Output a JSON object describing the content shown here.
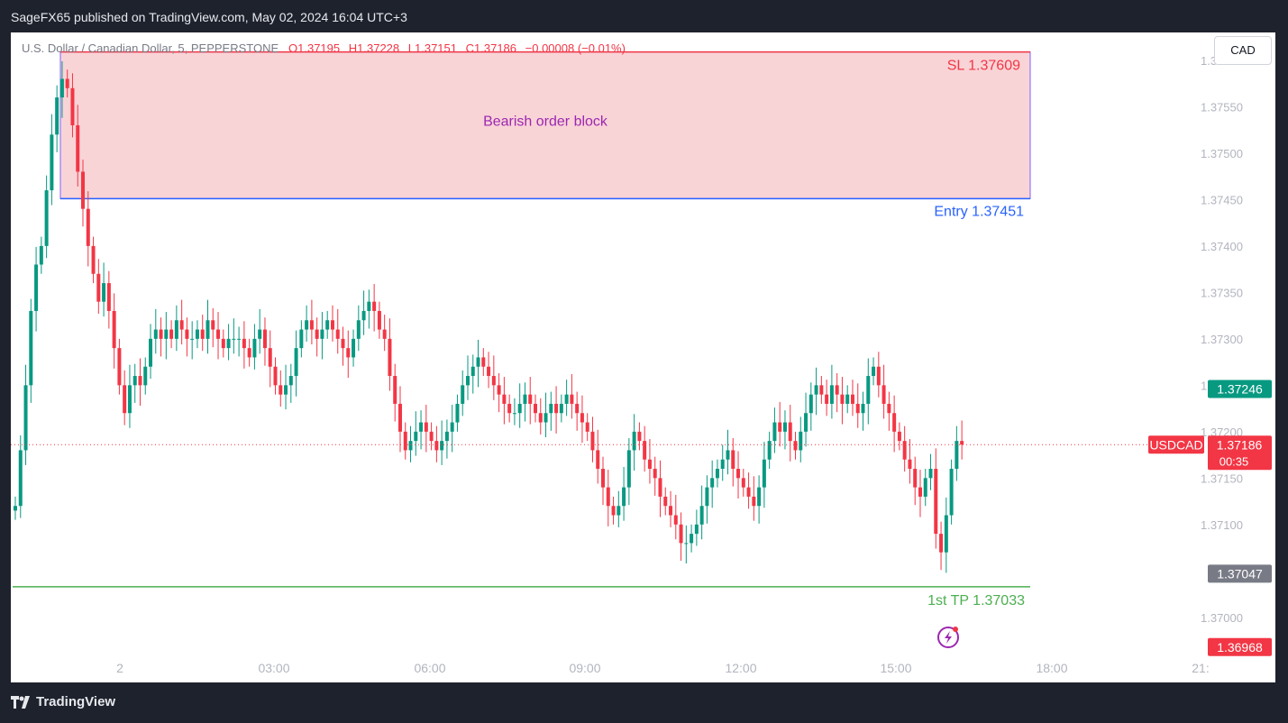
{
  "header": {
    "publisher": "SageFX65 published on TradingView.com, May 02, 2024 16:04 UTC+3"
  },
  "legend": {
    "symbol": "U.S. Dollar / Canadian Dollar, 5, PEPPERSTONE",
    "o_label": "O",
    "o_value": "1.37195",
    "h_label": "H",
    "h_value": "1.37228",
    "l_label": "L",
    "l_value": "1.37151",
    "c_label": "C",
    "c_value": "1.37186",
    "change": "−0.00008 (−0.01%)"
  },
  "currency_button": "CAD",
  "footer": {
    "brand": "TradingView"
  },
  "colors": {
    "up": "#089981",
    "down": "#f23645",
    "zone_fill": "#f9d4d7",
    "zone_border_top": "#f23645",
    "entry": "#2962ff",
    "tp": "#4caf50",
    "zone_text": "#9c27b0",
    "grid_text": "#b2b5be"
  },
  "chart_data": {
    "type": "candlestick",
    "symbol": "USDCAD",
    "timeframe": "5",
    "y_axis": {
      "range": [
        1.3696,
        1.3763
      ],
      "ticks": [
        "1.37600",
        "1.37550",
        "1.37500",
        "1.37450",
        "1.37400",
        "1.37350",
        "1.37300",
        "1.37250",
        "1.37200",
        "1.37150",
        "1.37100",
        "1.37000"
      ]
    },
    "x_axis": {
      "ticks": [
        "2",
        "03:00",
        "06:00",
        "09:00",
        "12:00",
        "15:00",
        "18:00",
        "21:"
      ]
    },
    "annotations": {
      "zone_label": "Bearish order block",
      "sl_label": "SL 1.37609",
      "entry_label": "Entry  1.37451",
      "tp_label": "1st TP 1.37033",
      "sl_price": 1.37609,
      "entry_price": 1.37451,
      "tp_price": 1.37033
    },
    "price_tags": {
      "high_tag": "1.37246",
      "symbol_tag": "USDCAD",
      "last_price": "1.37186",
      "countdown": "00:35",
      "low_tag": "1.37047",
      "red_tag": "1.36968"
    },
    "last_price": 1.37186,
    "high_tag_price": 1.37246,
    "low_tag_price": 1.37047,
    "red_tag_price": 1.36968,
    "closes": [
      1.3712,
      1.3718,
      1.3725,
      1.3733,
      1.3738,
      1.374,
      1.3746,
      1.3752,
      1.3756,
      1.3758,
      1.3757,
      1.3753,
      1.3748,
      1.3744,
      1.374,
      1.3737,
      1.3734,
      1.3736,
      1.3733,
      1.3729,
      1.3725,
      1.3722,
      1.3725,
      1.3726,
      1.3725,
      1.3727,
      1.373,
      1.3731,
      1.373,
      1.3731,
      1.373,
      1.3732,
      1.3731,
      1.373,
      1.373,
      1.3731,
      1.373,
      1.3732,
      1.3731,
      1.373,
      1.3729,
      1.373,
      1.373,
      1.373,
      1.3729,
      1.3728,
      1.373,
      1.3731,
      1.3729,
      1.3727,
      1.3725,
      1.3724,
      1.3725,
      1.3726,
      1.3729,
      1.3731,
      1.3732,
      1.3731,
      1.373,
      1.3731,
      1.3732,
      1.3731,
      1.373,
      1.3729,
      1.3728,
      1.373,
      1.3732,
      1.3733,
      1.3734,
      1.3733,
      1.3731,
      1.373,
      1.3726,
      1.3723,
      1.372,
      1.3718,
      1.3719,
      1.372,
      1.3721,
      1.372,
      1.3719,
      1.3718,
      1.3719,
      1.372,
      1.3721,
      1.3723,
      1.3725,
      1.3726,
      1.3727,
      1.3728,
      1.3727,
      1.3726,
      1.3725,
      1.3724,
      1.3723,
      1.3722,
      1.3722,
      1.3723,
      1.3724,
      1.3723,
      1.3722,
      1.3721,
      1.3722,
      1.3723,
      1.3722,
      1.3723,
      1.3724,
      1.3723,
      1.3722,
      1.3721,
      1.372,
      1.3718,
      1.3716,
      1.3714,
      1.3712,
      1.3711,
      1.3712,
      1.3714,
      1.3718,
      1.372,
      1.3719,
      1.3717,
      1.3716,
      1.3715,
      1.3713,
      1.3712,
      1.3711,
      1.371,
      1.3708,
      1.3708,
      1.3709,
      1.371,
      1.3712,
      1.3714,
      1.3715,
      1.3716,
      1.3717,
      1.3718,
      1.3716,
      1.3715,
      1.3714,
      1.3713,
      1.3712,
      1.3714,
      1.3717,
      1.3719,
      1.3721,
      1.372,
      1.3721,
      1.3719,
      1.3718,
      1.372,
      1.3722,
      1.3724,
      1.3725,
      1.3724,
      1.3723,
      1.3725,
      1.3724,
      1.3723,
      1.3724,
      1.3723,
      1.3722,
      1.3723,
      1.3726,
      1.3727,
      1.3725,
      1.3723,
      1.3722,
      1.372,
      1.3719,
      1.3717,
      1.3716,
      1.3714,
      1.3713,
      1.3715,
      1.3716,
      1.3709,
      1.3707,
      1.3711,
      1.3716,
      1.3719,
      1.37186
    ]
  }
}
